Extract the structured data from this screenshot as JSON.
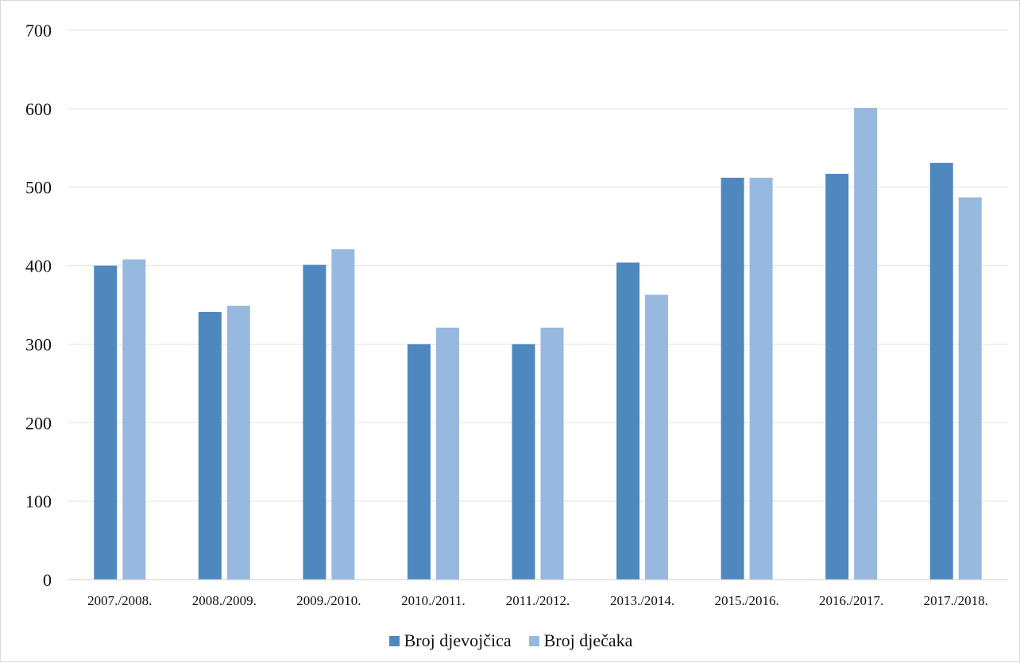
{
  "chart_data": {
    "type": "bar",
    "title": "",
    "xlabel": "",
    "ylabel": "",
    "categories": [
      "2007./2008.",
      "2008./2009.",
      "2009./2010.",
      "2010./2011.",
      "2011./2012.",
      "2013./2014.",
      "2015./2016.",
      "2016./2017.",
      "2017./2018."
    ],
    "series": [
      {
        "name": "Broj djevojčica",
        "color": "#4f88bf",
        "values": [
          400,
          341,
          401,
          300,
          300,
          404,
          512,
          517,
          531
        ]
      },
      {
        "name": "Broj dječaka",
        "color": "#97b9df",
        "values": [
          408,
          349,
          421,
          321,
          321,
          363,
          512,
          601,
          487
        ]
      }
    ],
    "ylim": [
      0,
      700
    ],
    "yticks": [
      0,
      100,
      200,
      300,
      400,
      500,
      600,
      700
    ],
    "grid": true,
    "legend_position": "bottom"
  }
}
